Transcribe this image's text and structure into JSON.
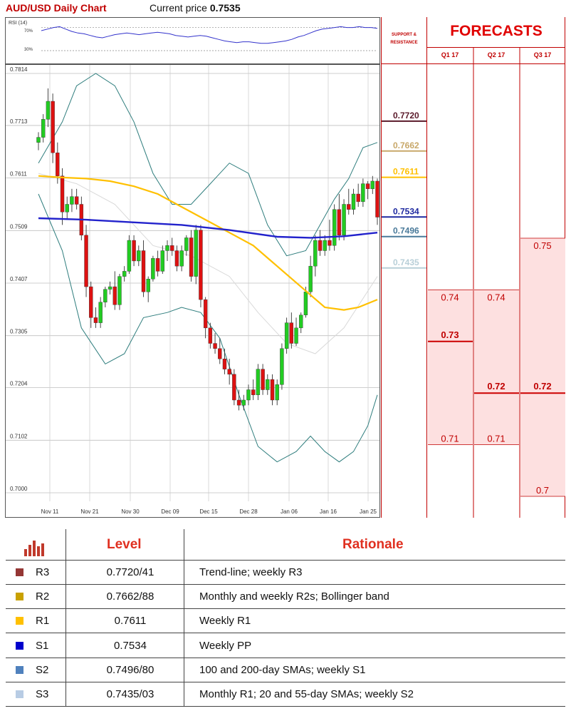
{
  "header": {
    "title": "AUD/USD Daily Chart",
    "price_label": "Current price",
    "price_value": "0.7535"
  },
  "rsi": {
    "label": "RSI (14)",
    "tick_labels": [
      "70%",
      "30%"
    ]
  },
  "support_resistance": {
    "heading_line1": "SUPPORT &",
    "heading_line2": "RESISTANCE"
  },
  "forecasts": {
    "title": "FORECASTS",
    "quarters": [
      {
        "label": "Q1 17",
        "low": 0.71,
        "mid": 0.73,
        "high": 0.74,
        "low_label": "0.71",
        "mid_label": "0.73",
        "high_label": "0.74"
      },
      {
        "label": "Q2 17",
        "low": 0.71,
        "mid": 0.72,
        "high": 0.74,
        "low_label": "0.71",
        "mid_label": "0.72",
        "high_label": "0.74"
      },
      {
        "label": "Q3 17",
        "low": 0.7,
        "mid": 0.72,
        "high": 0.75,
        "low_label": "0.7",
        "mid_label": "0.72",
        "high_label": "0.75"
      }
    ]
  },
  "levels_table": {
    "headers": {
      "level": "Level",
      "rationale": "Rationale"
    },
    "rows": [
      {
        "name": "R3",
        "level": "0.7720/41",
        "rationale": "Trend-line; weekly R3",
        "color": "#953735"
      },
      {
        "name": "R2",
        "level": "0.7662/88",
        "rationale": "Monthly and weekly R2s; Bollinger band",
        "color": "#c9a100"
      },
      {
        "name": "R1",
        "level": "0.7611",
        "rationale": "Weekly R1",
        "color": "#ffc000"
      },
      {
        "name": "S1",
        "level": "0.7534",
        "rationale": "Weekly PP",
        "color": "#0000cc"
      },
      {
        "name": "S2",
        "level": "0.7496/80",
        "rationale": "100 and 200-day SMAs; weekly S1",
        "color": "#4f81bd"
      },
      {
        "name": "S3",
        "level": "0.7435/03",
        "rationale": "Monthly R1; 20 and 55-day SMAs; weekly S2",
        "color": "#b8cce4"
      }
    ]
  },
  "chart_data": {
    "type": "candlestick",
    "title": "AUD/USD Daily Chart",
    "ylim": [
      0.7,
      0.7814
    ],
    "y_ticks": [
      "0.7814",
      "0.7713",
      "0.7611",
      "0.7509",
      "0.7407",
      "0.7305",
      "0.7204",
      "0.7102",
      "0.7000"
    ],
    "x_ticks": [
      "Nov 11",
      "Nov 21",
      "Nov 30",
      "Dec 09",
      "Dec 15",
      "Dec 28",
      "Jan 06",
      "Jan 16",
      "Jan 25"
    ],
    "sr_levels": [
      {
        "value": 0.772,
        "label": "0.7720",
        "color": "#5a1a2a"
      },
      {
        "value": 0.7662,
        "label": "0.7662",
        "color": "#c8a86a"
      },
      {
        "value": 0.7611,
        "label": "0.7611",
        "color": "#ffc000"
      },
      {
        "value": 0.7534,
        "label": "0.7534",
        "color": "#1f2aa0"
      },
      {
        "value": 0.7496,
        "label": "0.7496",
        "color": "#4a7a9a"
      },
      {
        "value": 0.7435,
        "label": "0.7435",
        "color": "#b8cfd8"
      }
    ],
    "candles": [
      [
        0.768,
        0.77,
        0.7665,
        0.769
      ],
      [
        0.769,
        0.7735,
        0.768,
        0.7725
      ],
      [
        0.7725,
        0.7785,
        0.771,
        0.776
      ],
      [
        0.776,
        0.7775,
        0.764,
        0.766
      ],
      [
        0.766,
        0.768,
        0.76,
        0.7615
      ],
      [
        0.7615,
        0.763,
        0.752,
        0.7545
      ],
      [
        0.7545,
        0.7575,
        0.753,
        0.756
      ],
      [
        0.756,
        0.759,
        0.7545,
        0.7575
      ],
      [
        0.7575,
        0.759,
        0.755,
        0.756
      ],
      [
        0.756,
        0.7575,
        0.749,
        0.75
      ],
      [
        0.75,
        0.752,
        0.738,
        0.74
      ],
      [
        0.74,
        0.741,
        0.732,
        0.734
      ],
      [
        0.734,
        0.736,
        0.732,
        0.733
      ],
      [
        0.733,
        0.738,
        0.732,
        0.737
      ],
      [
        0.737,
        0.74,
        0.736,
        0.7395
      ],
      [
        0.7395,
        0.741,
        0.7385,
        0.74
      ],
      [
        0.74,
        0.743,
        0.7355,
        0.7365
      ],
      [
        0.7365,
        0.7425,
        0.7355,
        0.742
      ],
      [
        0.742,
        0.744,
        0.741,
        0.743
      ],
      [
        0.743,
        0.75,
        0.7425,
        0.749
      ],
      [
        0.749,
        0.75,
        0.744,
        0.745
      ],
      [
        0.745,
        0.748,
        0.744,
        0.747
      ],
      [
        0.747,
        0.749,
        0.738,
        0.739
      ],
      [
        0.739,
        0.742,
        0.737,
        0.7415
      ],
      [
        0.7415,
        0.746,
        0.741,
        0.7455
      ],
      [
        0.7455,
        0.747,
        0.742,
        0.743
      ],
      [
        0.743,
        0.748,
        0.7425,
        0.747
      ],
      [
        0.747,
        0.749,
        0.745,
        0.748
      ],
      [
        0.748,
        0.7495,
        0.746,
        0.747
      ],
      [
        0.747,
        0.748,
        0.743,
        0.744
      ],
      [
        0.744,
        0.748,
        0.743,
        0.747
      ],
      [
        0.747,
        0.75,
        0.746,
        0.7495
      ],
      [
        0.7495,
        0.751,
        0.741,
        0.742
      ],
      [
        0.742,
        0.752,
        0.7405,
        0.751
      ],
      [
        0.751,
        0.752,
        0.736,
        0.7375
      ],
      [
        0.7375,
        0.738,
        0.73,
        0.732
      ],
      [
        0.732,
        0.733,
        0.728,
        0.729
      ],
      [
        0.729,
        0.731,
        0.727,
        0.728
      ],
      [
        0.728,
        0.73,
        0.725,
        0.726
      ],
      [
        0.726,
        0.728,
        0.723,
        0.724
      ],
      [
        0.724,
        0.726,
        0.721,
        0.723
      ],
      [
        0.723,
        0.724,
        0.717,
        0.718
      ],
      [
        0.718,
        0.72,
        0.716,
        0.717
      ],
      [
        0.717,
        0.719,
        0.716,
        0.718
      ],
      [
        0.718,
        0.721,
        0.717,
        0.72
      ],
      [
        0.72,
        0.722,
        0.718,
        0.719
      ],
      [
        0.719,
        0.725,
        0.718,
        0.724
      ],
      [
        0.724,
        0.725,
        0.719,
        0.72
      ],
      [
        0.72,
        0.723,
        0.719,
        0.722
      ],
      [
        0.722,
        0.723,
        0.717,
        0.718
      ],
      [
        0.718,
        0.722,
        0.717,
        0.721
      ],
      [
        0.721,
        0.729,
        0.72,
        0.728
      ],
      [
        0.728,
        0.734,
        0.727,
        0.733
      ],
      [
        0.733,
        0.735,
        0.728,
        0.729
      ],
      [
        0.729,
        0.734,
        0.7285,
        0.732
      ],
      [
        0.732,
        0.735,
        0.731,
        0.7345
      ],
      [
        0.7345,
        0.74,
        0.734,
        0.739
      ],
      [
        0.739,
        0.746,
        0.738,
        0.744
      ],
      [
        0.744,
        0.75,
        0.742,
        0.749
      ],
      [
        0.749,
        0.751,
        0.746,
        0.747
      ],
      [
        0.747,
        0.75,
        0.746,
        0.749
      ],
      [
        0.749,
        0.753,
        0.747,
        0.748
      ],
      [
        0.748,
        0.756,
        0.747,
        0.755
      ],
      [
        0.755,
        0.758,
        0.749,
        0.75
      ],
      [
        0.75,
        0.757,
        0.749,
        0.756
      ],
      [
        0.756,
        0.759,
        0.754,
        0.755
      ],
      [
        0.755,
        0.759,
        0.754,
        0.758
      ],
      [
        0.758,
        0.76,
        0.7555,
        0.7565
      ],
      [
        0.7565,
        0.761,
        0.7555,
        0.76
      ],
      [
        0.76,
        0.7605,
        0.757,
        0.759
      ],
      [
        0.759,
        0.7615,
        0.758,
        0.7605
      ],
      [
        0.7605,
        0.761,
        0.752,
        0.7535
      ]
    ],
    "overlays": {
      "sma_yellow": [
        [
          0,
          0.7615
        ],
        [
          5,
          0.7612
        ],
        [
          10,
          0.761
        ],
        [
          15,
          0.7605
        ],
        [
          20,
          0.7595
        ],
        [
          25,
          0.758
        ],
        [
          30,
          0.7555
        ],
        [
          35,
          0.753
        ],
        [
          40,
          0.7505
        ],
        [
          45,
          0.748
        ],
        [
          50,
          0.744
        ],
        [
          55,
          0.74
        ],
        [
          60,
          0.736
        ],
        [
          64,
          0.7355
        ],
        [
          67,
          0.736
        ],
        [
          71,
          0.7375
        ]
      ],
      "sma_blue": [
        [
          0,
          0.7533
        ],
        [
          10,
          0.753
        ],
        [
          20,
          0.7525
        ],
        [
          30,
          0.752
        ],
        [
          40,
          0.751
        ],
        [
          50,
          0.7497
        ],
        [
          57,
          0.7495
        ],
        [
          64,
          0.7498
        ],
        [
          71,
          0.7505
        ]
      ],
      "bb_upper": [
        [
          0,
          0.764
        ],
        [
          5,
          0.772
        ],
        [
          8,
          0.779
        ],
        [
          12,
          0.7814
        ],
        [
          16,
          0.779
        ],
        [
          20,
          0.772
        ],
        [
          24,
          0.762
        ],
        [
          28,
          0.756
        ],
        [
          32,
          0.756
        ],
        [
          36,
          0.76
        ],
        [
          40,
          0.764
        ],
        [
          44,
          0.762
        ],
        [
          48,
          0.752
        ],
        [
          52,
          0.746
        ],
        [
          56,
          0.747
        ],
        [
          59,
          0.752
        ],
        [
          62,
          0.757
        ],
        [
          65,
          0.761
        ],
        [
          68,
          0.767
        ],
        [
          71,
          0.768
        ]
      ],
      "bb_lower": [
        [
          0,
          0.758
        ],
        [
          5,
          0.747
        ],
        [
          9,
          0.732
        ],
        [
          14,
          0.725
        ],
        [
          18,
          0.727
        ],
        [
          22,
          0.734
        ],
        [
          27,
          0.735
        ],
        [
          30,
          0.736
        ],
        [
          34,
          0.735
        ],
        [
          38,
          0.73
        ],
        [
          42,
          0.719
        ],
        [
          46,
          0.709
        ],
        [
          50,
          0.706
        ],
        [
          54,
          0.708
        ],
        [
          57,
          0.711
        ],
        [
          60,
          0.708
        ],
        [
          63,
          0.706
        ],
        [
          66,
          0.708
        ],
        [
          69,
          0.713
        ],
        [
          71,
          0.719
        ]
      ],
      "bb_mid": [
        [
          0,
          0.762
        ],
        [
          8,
          0.76
        ],
        [
          16,
          0.756
        ],
        [
          24,
          0.748
        ],
        [
          32,
          0.746
        ],
        [
          40,
          0.742
        ],
        [
          46,
          0.735
        ],
        [
          52,
          0.729
        ],
        [
          58,
          0.727
        ],
        [
          64,
          0.732
        ],
        [
          71,
          0.742
        ]
      ]
    },
    "rsi_series": [
      66,
      68,
      70,
      71,
      68,
      65,
      63,
      62,
      60,
      58,
      57,
      59,
      61,
      62,
      63,
      62,
      61,
      62,
      63,
      64,
      63,
      62,
      60,
      59,
      58,
      59,
      60,
      59,
      57,
      55,
      53,
      52,
      51,
      52,
      52,
      51,
      50,
      50,
      51,
      52,
      53,
      55,
      58,
      60,
      63,
      66,
      68,
      69,
      70,
      71,
      70,
      70,
      71,
      70,
      70,
      69
    ]
  }
}
